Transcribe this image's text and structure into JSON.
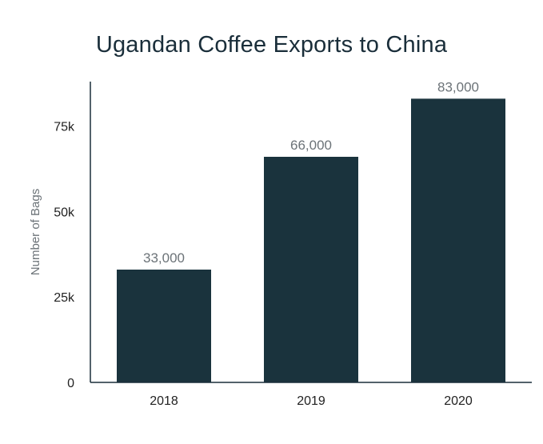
{
  "chart_data": {
    "type": "bar",
    "title": "Ugandan Coffee Exports to China",
    "xlabel": "",
    "ylabel": "Number of Bags",
    "categories": [
      "2018",
      "2019",
      "2020"
    ],
    "values": [
      33000,
      66000,
      83000
    ],
    "value_labels": [
      "33,000",
      "66,000",
      "83,000"
    ],
    "ylim": [
      0,
      88000
    ],
    "yticks": [
      0,
      25000,
      50000,
      75000
    ],
    "ytick_labels": [
      "0",
      "25k",
      "50k",
      "75k"
    ],
    "grid": false,
    "legend": "none",
    "colors": {
      "bar": "#1a333d",
      "axis": "#1a2e3a",
      "title": "#1a2e3a",
      "value_label": "#6c7378",
      "axis_title": "#6c7378"
    }
  }
}
